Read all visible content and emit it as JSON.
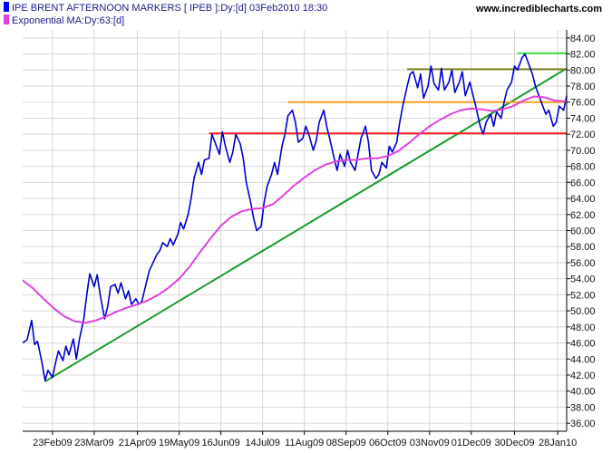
{
  "header": {
    "legend": [
      {
        "label": "IPE BRENT AFTERNOON MARKERS [ IPEB ]:Dy:[d]  03Feb2010 18:30",
        "color": "#0000ff"
      },
      {
        "label": "Exponential MA:Dy:63:[d]",
        "color": "#e040e0"
      }
    ],
    "site": "www.incrediblecharts.com"
  },
  "chart_data": {
    "type": "line",
    "y_axis_side": "right",
    "ylim": [
      35,
      85
    ],
    "yticks": [
      36,
      38,
      40,
      42,
      44,
      46,
      48,
      50,
      52,
      54,
      56,
      58,
      60,
      62,
      64,
      66,
      68,
      70,
      72,
      74,
      76,
      78,
      80,
      82,
      84
    ],
    "ytick_labels": [
      "36.00",
      "38.00",
      "40.00",
      "42.00",
      "44.00",
      "46.00",
      "48.00",
      "50.00",
      "52.00",
      "54.00",
      "56.00",
      "58.00",
      "60.00",
      "62.00",
      "64.00",
      "66.00",
      "68.00",
      "70.00",
      "72.00",
      "74.00",
      "76.00",
      "78.00",
      "80.00",
      "82.00",
      "84.00"
    ],
    "xlim": [
      "2009-02-03",
      "2010-02-03"
    ],
    "xticks": [
      {
        "date": "2009-02-23",
        "label": "23Feb09"
      },
      {
        "date": "2009-03-23",
        "label": "23Mar09"
      },
      {
        "date": "2009-04-21",
        "label": "21Apr09"
      },
      {
        "date": "2009-05-19",
        "label": "19May09"
      },
      {
        "date": "2009-06-16",
        "label": "16Jun09"
      },
      {
        "date": "2009-07-14",
        "label": "14Jul09"
      },
      {
        "date": "2009-08-11",
        "label": "11Aug09"
      },
      {
        "date": "2009-09-08",
        "label": "08Sep09"
      },
      {
        "date": "2009-10-06",
        "label": "06Oct09"
      },
      {
        "date": "2009-11-03",
        "label": "03Nov09"
      },
      {
        "date": "2009-12-01",
        "label": "01Dec09"
      },
      {
        "date": "2009-12-30",
        "label": "30Dec09"
      },
      {
        "date": "2010-01-28",
        "label": "28Jan10"
      }
    ],
    "series": [
      {
        "color": "#0000cc",
        "points": [
          [
            "2009-02-03",
            46.0
          ],
          [
            "2009-02-06",
            46.4
          ],
          [
            "2009-02-09",
            48.8
          ],
          [
            "2009-02-11",
            45.8
          ],
          [
            "2009-02-13",
            46.2
          ],
          [
            "2009-02-16",
            43.5
          ],
          [
            "2009-02-18",
            41.3
          ],
          [
            "2009-02-20",
            42.6
          ],
          [
            "2009-02-23",
            41.7
          ],
          [
            "2009-02-25",
            43.5
          ],
          [
            "2009-02-27",
            45.0
          ],
          [
            "2009-03-02",
            43.8
          ],
          [
            "2009-03-04",
            45.6
          ],
          [
            "2009-03-06",
            44.5
          ],
          [
            "2009-03-09",
            46.5
          ],
          [
            "2009-03-11",
            44.0
          ],
          [
            "2009-03-13",
            46.4
          ],
          [
            "2009-03-16",
            49.0
          ],
          [
            "2009-03-18",
            52.0
          ],
          [
            "2009-03-20",
            54.6
          ],
          [
            "2009-03-23",
            53.0
          ],
          [
            "2009-03-25",
            54.5
          ],
          [
            "2009-03-27",
            52.0
          ],
          [
            "2009-03-30",
            49.0
          ],
          [
            "2009-04-01",
            50.5
          ],
          [
            "2009-04-03",
            53.0
          ],
          [
            "2009-04-06",
            53.3
          ],
          [
            "2009-04-08",
            52.2
          ],
          [
            "2009-04-10",
            53.5
          ],
          [
            "2009-04-13",
            51.5
          ],
          [
            "2009-04-15",
            52.5
          ],
          [
            "2009-04-17",
            50.8
          ],
          [
            "2009-04-20",
            51.5
          ],
          [
            "2009-04-22",
            50.8
          ],
          [
            "2009-04-24",
            51.2
          ],
          [
            "2009-04-27",
            53.5
          ],
          [
            "2009-04-29",
            55.0
          ],
          [
            "2009-05-01",
            55.8
          ],
          [
            "2009-05-04",
            57.0
          ],
          [
            "2009-05-06",
            57.5
          ],
          [
            "2009-05-08",
            58.5
          ],
          [
            "2009-05-11",
            58.0
          ],
          [
            "2009-05-13",
            59.0
          ],
          [
            "2009-05-15",
            58.2
          ],
          [
            "2009-05-18",
            59.5
          ],
          [
            "2009-05-20",
            61.0
          ],
          [
            "2009-05-22",
            60.2
          ],
          [
            "2009-05-25",
            62.0
          ],
          [
            "2009-05-27",
            64.0
          ],
          [
            "2009-05-29",
            66.5
          ],
          [
            "2009-06-01",
            68.5
          ],
          [
            "2009-06-03",
            67.0
          ],
          [
            "2009-06-05",
            68.8
          ],
          [
            "2009-06-08",
            69.0
          ],
          [
            "2009-06-10",
            72.0
          ],
          [
            "2009-06-12",
            71.0
          ],
          [
            "2009-06-15",
            69.5
          ],
          [
            "2009-06-17",
            72.3
          ],
          [
            "2009-06-19",
            70.5
          ],
          [
            "2009-06-22",
            68.5
          ],
          [
            "2009-06-24",
            69.8
          ],
          [
            "2009-06-26",
            72.0
          ],
          [
            "2009-06-29",
            70.8
          ],
          [
            "2009-07-01",
            69.0
          ],
          [
            "2009-07-03",
            66.0
          ],
          [
            "2009-07-06",
            63.5
          ],
          [
            "2009-07-08",
            61.5
          ],
          [
            "2009-07-10",
            60.0
          ],
          [
            "2009-07-13",
            60.5
          ],
          [
            "2009-07-15",
            63.5
          ],
          [
            "2009-07-17",
            65.5
          ],
          [
            "2009-07-20",
            67.0
          ],
          [
            "2009-07-22",
            68.5
          ],
          [
            "2009-07-24",
            67.0
          ],
          [
            "2009-07-27",
            70.5
          ],
          [
            "2009-07-29",
            72.0
          ],
          [
            "2009-07-31",
            74.3
          ],
          [
            "2009-08-03",
            75.0
          ],
          [
            "2009-08-05",
            73.5
          ],
          [
            "2009-08-07",
            71.0
          ],
          [
            "2009-08-10",
            71.5
          ],
          [
            "2009-08-12",
            73.0
          ],
          [
            "2009-08-14",
            72.0
          ],
          [
            "2009-08-17",
            70.0
          ],
          [
            "2009-08-19",
            71.2
          ],
          [
            "2009-08-21",
            73.5
          ],
          [
            "2009-08-24",
            75.0
          ],
          [
            "2009-08-26",
            73.0
          ],
          [
            "2009-08-28",
            71.5
          ],
          [
            "2009-08-31",
            69.0
          ],
          [
            "2009-09-02",
            67.5
          ],
          [
            "2009-09-04",
            69.5
          ],
          [
            "2009-09-07",
            68.0
          ],
          [
            "2009-09-09",
            70.0
          ],
          [
            "2009-09-11",
            68.5
          ],
          [
            "2009-09-14",
            67.5
          ],
          [
            "2009-09-16",
            69.5
          ],
          [
            "2009-09-18",
            71.5
          ],
          [
            "2009-09-21",
            73.0
          ],
          [
            "2009-09-23",
            71.0
          ],
          [
            "2009-09-25",
            67.5
          ],
          [
            "2009-09-28",
            66.5
          ],
          [
            "2009-09-30",
            67.0
          ],
          [
            "2009-10-02",
            68.5
          ],
          [
            "2009-10-05",
            67.8
          ],
          [
            "2009-10-07",
            70.5
          ],
          [
            "2009-10-09",
            69.8
          ],
          [
            "2009-10-12",
            71.0
          ],
          [
            "2009-10-14",
            73.5
          ],
          [
            "2009-10-16",
            75.5
          ],
          [
            "2009-10-19",
            78.0
          ],
          [
            "2009-10-21",
            79.5
          ],
          [
            "2009-10-23",
            79.8
          ],
          [
            "2009-10-26",
            77.8
          ],
          [
            "2009-10-28",
            79.5
          ],
          [
            "2009-10-30",
            76.5
          ],
          [
            "2009-11-02",
            78.0
          ],
          [
            "2009-11-04",
            80.5
          ],
          [
            "2009-11-06",
            78.3
          ],
          [
            "2009-11-09",
            77.5
          ],
          [
            "2009-11-11",
            80.2
          ],
          [
            "2009-11-13",
            77.5
          ],
          [
            "2009-11-16",
            78.5
          ],
          [
            "2009-11-18",
            80.0
          ],
          [
            "2009-11-20",
            77.2
          ],
          [
            "2009-11-23",
            78.5
          ],
          [
            "2009-11-25",
            79.8
          ],
          [
            "2009-11-27",
            76.8
          ],
          [
            "2009-11-30",
            78.5
          ],
          [
            "2009-12-02",
            77.0
          ],
          [
            "2009-12-04",
            75.5
          ],
          [
            "2009-12-07",
            73.0
          ],
          [
            "2009-12-09",
            72.0
          ],
          [
            "2009-12-11",
            73.5
          ],
          [
            "2009-12-14",
            74.5
          ],
          [
            "2009-12-16",
            73.0
          ],
          [
            "2009-12-18",
            74.8
          ],
          [
            "2009-12-21",
            74.0
          ],
          [
            "2009-12-23",
            76.0
          ],
          [
            "2009-12-25",
            77.5
          ],
          [
            "2009-12-28",
            78.5
          ],
          [
            "2009-12-30",
            80.5
          ],
          [
            "2010-01-01",
            80.0
          ],
          [
            "2010-01-04",
            81.5
          ],
          [
            "2010-01-06",
            82.0
          ],
          [
            "2010-01-08",
            81.0
          ],
          [
            "2010-01-11",
            79.5
          ],
          [
            "2010-01-13",
            78.0
          ],
          [
            "2010-01-15",
            77.0
          ],
          [
            "2010-01-18",
            75.5
          ],
          [
            "2010-01-20",
            74.5
          ],
          [
            "2010-01-22",
            75.0
          ],
          [
            "2010-01-25",
            73.0
          ],
          [
            "2010-01-27",
            73.5
          ],
          [
            "2010-01-29",
            75.5
          ],
          [
            "2010-02-01",
            75.0
          ],
          [
            "2010-02-03",
            76.8
          ]
        ]
      },
      {
        "color": "#e040e0",
        "points": [
          [
            "2009-02-03",
            53.8
          ],
          [
            "2009-02-10",
            52.8
          ],
          [
            "2009-02-17",
            51.5
          ],
          [
            "2009-02-24",
            50.3
          ],
          [
            "2009-03-03",
            49.3
          ],
          [
            "2009-03-10",
            48.7
          ],
          [
            "2009-03-17",
            48.5
          ],
          [
            "2009-03-24",
            48.8
          ],
          [
            "2009-03-31",
            49.3
          ],
          [
            "2009-04-07",
            49.9
          ],
          [
            "2009-04-14",
            50.4
          ],
          [
            "2009-04-21",
            50.8
          ],
          [
            "2009-04-28",
            51.3
          ],
          [
            "2009-05-05",
            52.0
          ],
          [
            "2009-05-12",
            52.9
          ],
          [
            "2009-05-19",
            54.0
          ],
          [
            "2009-05-26",
            55.5
          ],
          [
            "2009-06-02",
            57.3
          ],
          [
            "2009-06-09",
            59.0
          ],
          [
            "2009-06-16",
            60.6
          ],
          [
            "2009-06-23",
            61.7
          ],
          [
            "2009-06-30",
            62.4
          ],
          [
            "2009-07-07",
            62.7
          ],
          [
            "2009-07-14",
            62.8
          ],
          [
            "2009-07-21",
            63.3
          ],
          [
            "2009-07-28",
            64.4
          ],
          [
            "2009-08-04",
            65.6
          ],
          [
            "2009-08-11",
            66.6
          ],
          [
            "2009-08-18",
            67.5
          ],
          [
            "2009-08-25",
            68.2
          ],
          [
            "2009-09-01",
            68.6
          ],
          [
            "2009-09-08",
            68.8
          ],
          [
            "2009-09-15",
            68.8
          ],
          [
            "2009-09-22",
            69.0
          ],
          [
            "2009-09-29",
            69.0
          ],
          [
            "2009-10-06",
            69.3
          ],
          [
            "2009-10-13",
            69.9
          ],
          [
            "2009-10-20",
            70.9
          ],
          [
            "2009-10-27",
            72.0
          ],
          [
            "2009-11-03",
            73.0
          ],
          [
            "2009-11-10",
            73.8
          ],
          [
            "2009-11-17",
            74.5
          ],
          [
            "2009-11-24",
            75.0
          ],
          [
            "2009-12-01",
            75.2
          ],
          [
            "2009-12-08",
            75.1
          ],
          [
            "2009-12-15",
            74.9
          ],
          [
            "2009-12-22",
            75.1
          ],
          [
            "2009-12-29",
            75.5
          ],
          [
            "2010-01-05",
            76.2
          ],
          [
            "2010-01-12",
            76.7
          ],
          [
            "2010-01-19",
            76.6
          ],
          [
            "2010-01-26",
            76.2
          ],
          [
            "2010-02-03",
            76.1
          ]
        ]
      }
    ],
    "trendlines": [
      {
        "color": "#1a9a2a",
        "from": [
          "2009-02-18",
          41.2
        ],
        "to": [
          "2010-02-03",
          80.2
        ]
      },
      {
        "color": "#ff1a1a",
        "from": [
          "2009-06-08",
          72.1
        ],
        "to": [
          "2010-02-03",
          72.1
        ]
      },
      {
        "color": "#f0a020",
        "from": [
          "2009-07-31",
          76.0
        ],
        "to": [
          "2010-02-03",
          76.0
        ]
      },
      {
        "color": "#808020",
        "from": [
          "2009-10-19",
          80.1
        ],
        "to": [
          "2010-02-03",
          80.1
        ]
      },
      {
        "color": "#40e040",
        "from": [
          "2010-01-01",
          82.1
        ],
        "to": [
          "2010-02-03",
          82.1
        ]
      }
    ]
  }
}
